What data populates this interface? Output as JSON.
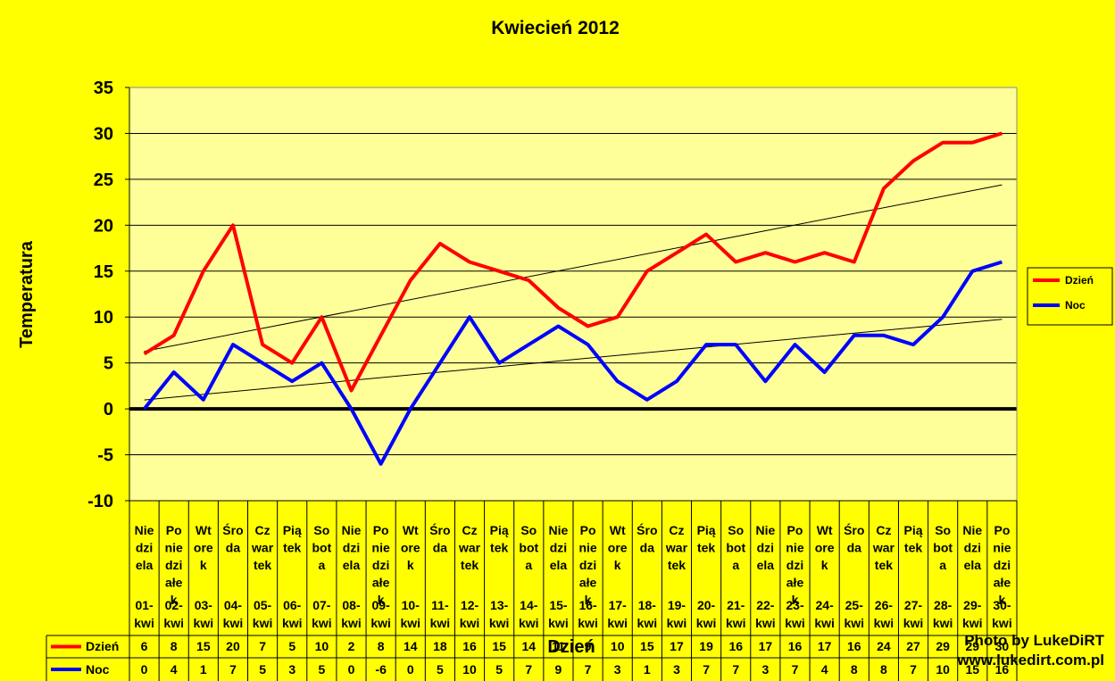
{
  "chart_data": {
    "type": "line",
    "title": "Kwiecień 2012",
    "xlabel": "Dzień",
    "ylabel": "Temperatura",
    "ylim": [
      -10,
      35
    ],
    "ytick_step": 5,
    "grid": true,
    "legend_position": "right",
    "categories": [
      "01-kwi",
      "02-kwi",
      "03-kwi",
      "04-kwi",
      "05-kwi",
      "06-kwi",
      "07-kwi",
      "08-kwi",
      "09-kwi",
      "10-kwi",
      "11-kwi",
      "12-kwi",
      "13-kwi",
      "14-kwi",
      "15-kwi",
      "16-kwi",
      "17-kwi",
      "18-kwi",
      "19-kwi",
      "20-kwi",
      "21-kwi",
      "22-kwi",
      "23-kwi",
      "24-kwi",
      "25-kwi",
      "26-kwi",
      "27-kwi",
      "28-kwi",
      "29-kwi",
      "30-kwi"
    ],
    "weekdays": [
      [
        "Nie",
        "dzi",
        "ela"
      ],
      [
        "Po",
        "nie",
        "dzi",
        "ałe",
        "k"
      ],
      [
        "Wt",
        "ore",
        "k"
      ],
      [
        "Śro",
        "da"
      ],
      [
        "Cz",
        "war",
        "tek"
      ],
      [
        "Pią",
        "tek"
      ],
      [
        "So",
        "bot",
        "a"
      ],
      [
        "Nie",
        "dzi",
        "ela"
      ],
      [
        "Po",
        "nie",
        "dzi",
        "ałe",
        "k"
      ],
      [
        "Wt",
        "ore",
        "k"
      ],
      [
        "Śro",
        "da"
      ],
      [
        "Cz",
        "war",
        "tek"
      ],
      [
        "Pią",
        "tek"
      ],
      [
        "So",
        "bot",
        "a"
      ],
      [
        "Nie",
        "dzi",
        "ela"
      ],
      [
        "Po",
        "nie",
        "dzi",
        "ałe",
        "k"
      ],
      [
        "Wt",
        "ore",
        "k"
      ],
      [
        "Śro",
        "da"
      ],
      [
        "Cz",
        "war",
        "tek"
      ],
      [
        "Pią",
        "tek"
      ],
      [
        "So",
        "bot",
        "a"
      ],
      [
        "Nie",
        "dzi",
        "ela"
      ],
      [
        "Po",
        "nie",
        "dzi",
        "ałe",
        "k"
      ],
      [
        "Wt",
        "ore",
        "k"
      ],
      [
        "Śro",
        "da"
      ],
      [
        "Cz",
        "war",
        "tek"
      ],
      [
        "Pią",
        "tek"
      ],
      [
        "So",
        "bot",
        "a"
      ],
      [
        "Nie",
        "dzi",
        "ela"
      ],
      [
        "Po",
        "nie",
        "dzi",
        "ałe",
        "k"
      ]
    ],
    "series": [
      {
        "name": "Dzień",
        "color": "#FF0000",
        "values": [
          6,
          8,
          15,
          20,
          7,
          5,
          10,
          2,
          8,
          14,
          18,
          16,
          15,
          14,
          11,
          9,
          10,
          15,
          17,
          19,
          16,
          17,
          16,
          17,
          16,
          24,
          27,
          29,
          29,
          30
        ]
      },
      {
        "name": "Noc",
        "color": "#0000FF",
        "values": [
          0,
          4,
          1,
          7,
          5,
          3,
          5,
          0,
          -6,
          0,
          5,
          10,
          5,
          7,
          9,
          7,
          3,
          1,
          3,
          7,
          7,
          3,
          7,
          4,
          8,
          8,
          7,
          10,
          15,
          16
        ]
      }
    ],
    "trendline_color": "#000000"
  },
  "credit": {
    "line1": "Photo by LukeDiRT",
    "line2": "www.lukedirt.com.pl"
  },
  "colors": {
    "background": "#FFFF00",
    "plot_area": "#FFFF99"
  }
}
